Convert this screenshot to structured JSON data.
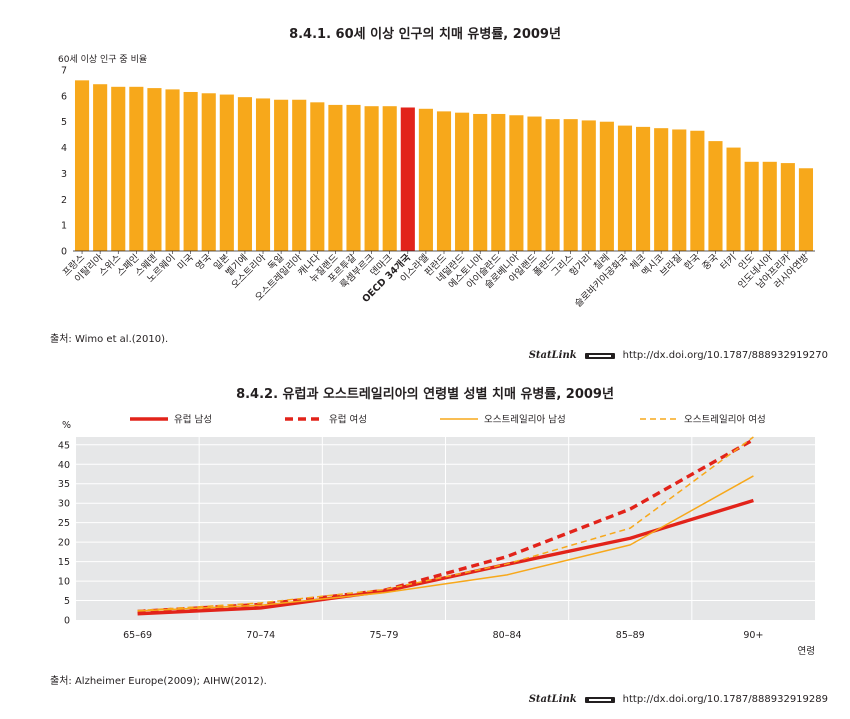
{
  "chart1": {
    "title": "8.4.1. 60세 이상 인구의 치매 유병률, 2009년",
    "ylabel": "60세 이상 인구 중 비율",
    "source": "출처: Wimo et al.(2010).",
    "statlink_word": "StatLink",
    "statlink_url": "http://dx.doi.org/10.1787/888932919270"
  },
  "chart2": {
    "title": "8.4.2. 유럽과 오스트레일리아의 연령별 성별 치매 유병률, 2009년",
    "unit": "%",
    "xlabel": "연령",
    "source": "출처: Alzheimer Europe(2009); AIHW(2012).",
    "statlink_word": "StatLink",
    "statlink_url": "http://dx.doi.org/10.1787/888932919289"
  },
  "chart_data": [
    {
      "type": "bar",
      "title": "8.4.1. 60세 이상 인구의 치매 유병률, 2009년",
      "ylabel": "60세 이상 인구 중 비율",
      "ylim": [
        0,
        7
      ],
      "yticks": [
        0,
        1,
        2,
        3,
        4,
        5,
        6,
        7
      ],
      "grid": false,
      "colors": {
        "bar": "#f7a81b",
        "highlight": "#e2231a"
      },
      "highlight": "OECD 34개국",
      "categories": [
        "프랑스",
        "이탈리아",
        "스위스",
        "스페인",
        "스웨덴",
        "노르웨이",
        "미국",
        "영국",
        "일본",
        "벨기에",
        "오스트리아",
        "독일",
        "오스트레일리아",
        "캐나다",
        "뉴질랜드",
        "포르투갈",
        "룩셈부르크",
        "덴마크",
        "OECD 34개국",
        "이스라엘",
        "핀란드",
        "네덜란드",
        "에스토니아",
        "아이슬란드",
        "슬로베니아",
        "아일랜드",
        "폴란드",
        "그리스",
        "헝가리",
        "칠레",
        "슬로바키아공화국",
        "체코",
        "멕시코",
        "브라질",
        "한국",
        "중국",
        "터키",
        "인도",
        "인도네시아",
        "남아프리카",
        "러시아연방"
      ],
      "values": [
        6.6,
        6.45,
        6.35,
        6.35,
        6.3,
        6.25,
        6.15,
        6.1,
        6.05,
        5.95,
        5.9,
        5.85,
        5.85,
        5.75,
        5.65,
        5.65,
        5.6,
        5.6,
        5.55,
        5.5,
        5.4,
        5.35,
        5.3,
        5.3,
        5.25,
        5.2,
        5.1,
        5.1,
        5.05,
        5.0,
        4.85,
        4.8,
        4.75,
        4.7,
        4.65,
        4.25,
        4.0,
        3.45,
        3.45,
        3.4,
        3.2
      ]
    },
    {
      "type": "line",
      "title": "8.4.2. 유럽과 오스트레일리아의 연령별 성별 치매 유병률, 2009년",
      "xlabel": "연령",
      "ylabel": "%",
      "ylim": [
        0,
        47
      ],
      "yticks": [
        0,
        5,
        10,
        15,
        20,
        25,
        30,
        35,
        40,
        45
      ],
      "grid": true,
      "legend": "top",
      "categories": [
        "65–69",
        "70–74",
        "75–79",
        "80–84",
        "85–89",
        "90+"
      ],
      "series": [
        {
          "name": "유럽 남성",
          "color": "#e2231a",
          "dash": "solid",
          "width": "thick",
          "values": [
            1.6,
            3.1,
            7.4,
            14.3,
            21.0,
            30.7
          ]
        },
        {
          "name": "유럽 여성",
          "color": "#e2231a",
          "dash": "dashed",
          "width": "thick",
          "values": [
            2.2,
            4.0,
            7.6,
            16.3,
            28.5,
            46.3
          ]
        },
        {
          "name": "오스트레일리아 남성",
          "color": "#f7a81b",
          "dash": "solid",
          "width": "thin",
          "values": [
            2.3,
            3.8,
            7.0,
            11.6,
            19.3,
            37.0
          ]
        },
        {
          "name": "오스트레일리아 여성",
          "color": "#f7a81b",
          "dash": "dashed",
          "width": "thin",
          "values": [
            2.4,
            4.4,
            7.8,
            14.4,
            23.6,
            47.0
          ]
        }
      ]
    }
  ]
}
